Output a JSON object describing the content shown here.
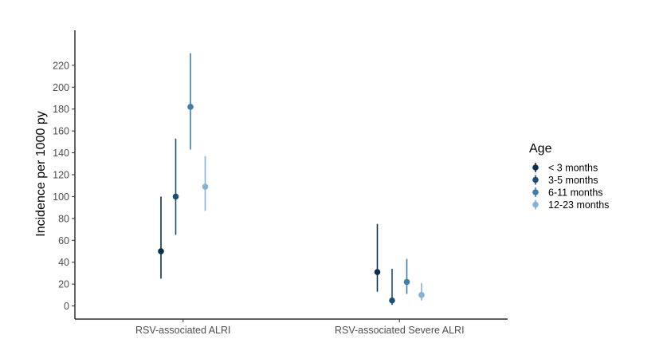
{
  "chart_data": {
    "type": "scatter",
    "subtype": "point-range",
    "categories": [
      "RSV-associated ALRI",
      "RSV-associated Severe ALRI"
    ],
    "ylabel": "Incidence per 1000 py",
    "xlabel": "",
    "ylim": [
      -12,
      252
    ],
    "yticks": [
      0,
      20,
      40,
      60,
      80,
      100,
      120,
      140,
      160,
      180,
      200,
      220
    ],
    "grid": false,
    "legend": {
      "title": "Age",
      "placement": "right"
    },
    "series": [
      {
        "name": "< 3 months",
        "color": "#0d2f4f",
        "values": [
          50,
          31
        ],
        "lower": [
          25,
          13
        ],
        "upper": [
          100,
          75
        ]
      },
      {
        "name": "3-5 months",
        "color": "#1c4e78",
        "values": [
          100,
          5
        ],
        "lower": [
          65,
          1
        ],
        "upper": [
          153,
          34
        ]
      },
      {
        "name": "6-11 months",
        "color": "#3f7eab",
        "values": [
          182,
          22
        ],
        "lower": [
          143,
          11
        ],
        "upper": [
          231,
          43
        ]
      },
      {
        "name": "12-23 months",
        "color": "#86b1d3",
        "values": [
          109,
          10
        ],
        "lower": [
          87,
          5
        ],
        "upper": [
          137,
          21
        ]
      }
    ]
  }
}
